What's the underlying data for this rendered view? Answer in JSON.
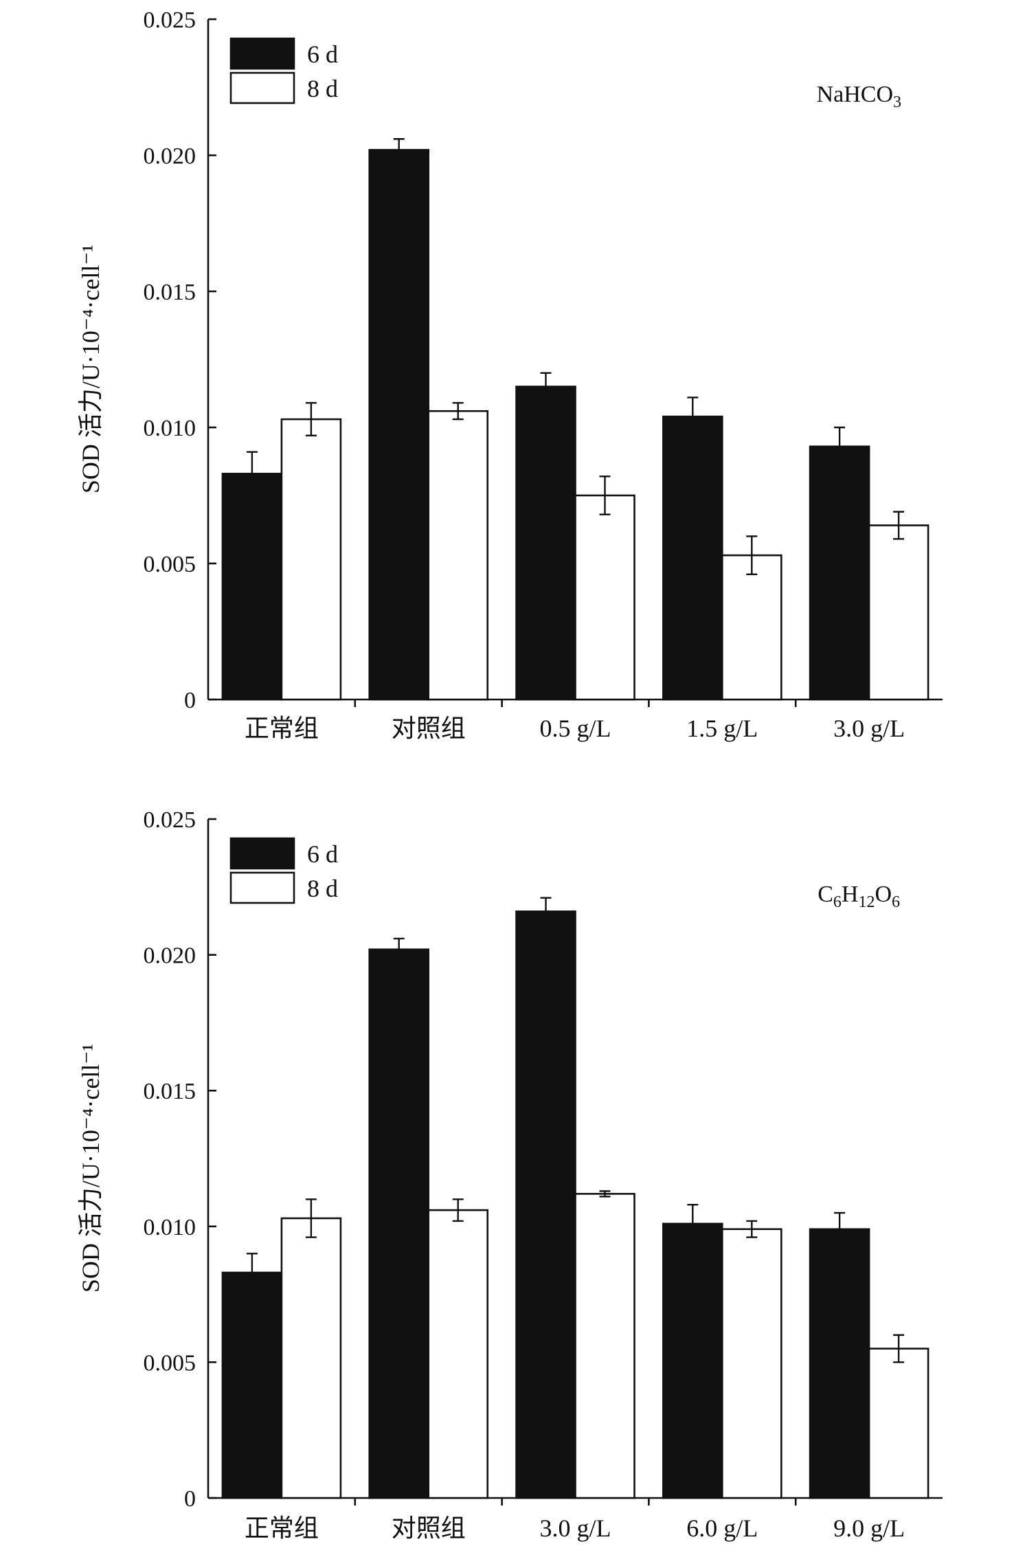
{
  "chart_data": [
    {
      "type": "bar",
      "title": "",
      "annotation": {
        "main": "NaHCO",
        "sub": "3"
      },
      "ylabel": "SOD 活力/U·10⁻⁴·cell⁻¹",
      "ylim": [
        0,
        0.025
      ],
      "yticks": [
        "0",
        "0.005",
        "0.010",
        "0.015",
        "0.020",
        "0.025"
      ],
      "categories": [
        "正常组",
        "对照组",
        "0.5 g/L",
        "1.5 g/L",
        "3.0 g/L"
      ],
      "legend_position": "top-left",
      "series": [
        {
          "name": "6 d",
          "color": "#111111",
          "values": [
            0.0083,
            0.0202,
            0.0115,
            0.0104,
            0.0093
          ],
          "errors": [
            0.0008,
            0.0004,
            0.0005,
            0.0007,
            0.0007
          ]
        },
        {
          "name": "8 d",
          "color": "#ffffff",
          "values": [
            0.0103,
            0.0106,
            0.0075,
            0.0053,
            0.0064
          ],
          "errors": [
            0.0006,
            0.0003,
            0.0007,
            0.0007,
            0.0005
          ]
        }
      ]
    },
    {
      "type": "bar",
      "title": "",
      "annotation": {
        "main": "C",
        "parts": [
          [
            "6",
            true
          ],
          [
            "H",
            false
          ],
          [
            "12",
            true
          ],
          [
            "O",
            false
          ],
          [
            "6",
            true
          ]
        ]
      },
      "ylabel": "SOD 活力/U·10⁻⁴·cell⁻¹",
      "ylim": [
        0,
        0.025
      ],
      "yticks": [
        "0",
        "0.005",
        "0.010",
        "0.015",
        "0.020",
        "0.025"
      ],
      "categories": [
        "正常组",
        "对照组",
        "3.0 g/L",
        "6.0 g/L",
        "9.0 g/L"
      ],
      "legend_position": "top-left",
      "series": [
        {
          "name": "6 d",
          "color": "#111111",
          "values": [
            0.0083,
            0.0202,
            0.0216,
            0.0101,
            0.0099
          ],
          "errors": [
            0.0007,
            0.0004,
            0.0005,
            0.0007,
            0.0006
          ]
        },
        {
          "name": "8 d",
          "color": "#ffffff",
          "values": [
            0.0103,
            0.0106,
            0.0112,
            0.0099,
            0.0055
          ],
          "errors": [
            0.0007,
            0.0004,
            0.0001,
            0.0003,
            0.0005
          ]
        }
      ]
    }
  ]
}
